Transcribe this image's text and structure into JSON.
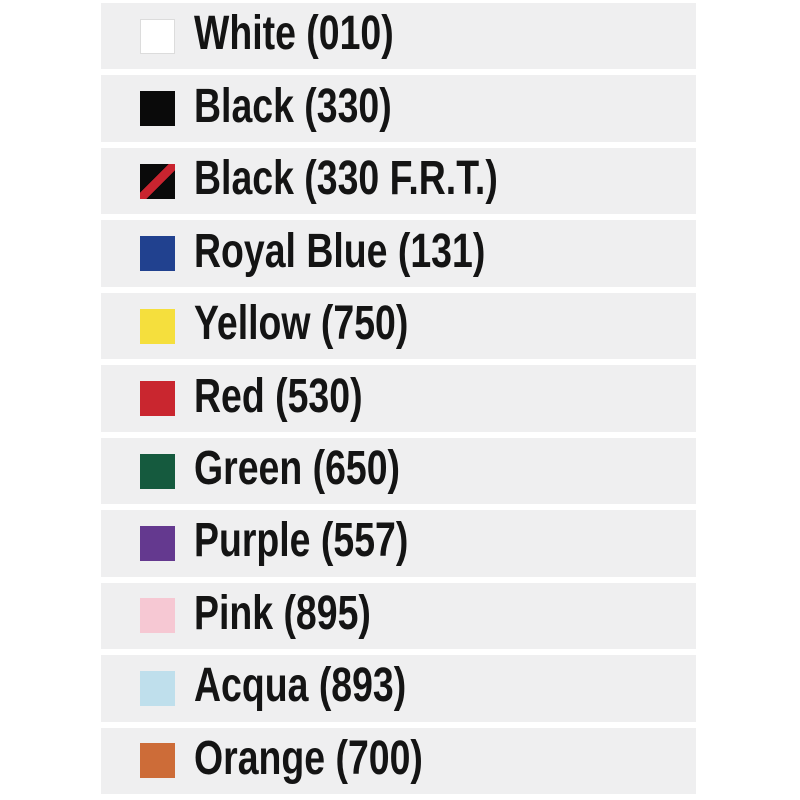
{
  "palette": {
    "page_background": "#ffffff",
    "row_background": "#efeff0",
    "text_color": "#141414",
    "white_swatch_border": "#dcdcdc"
  },
  "color_list": {
    "items": [
      {
        "label": "White (010)",
        "color_name": "White",
        "code": "010",
        "swatch": "#ffffff",
        "bordered": true
      },
      {
        "label": "Black (330)",
        "color_name": "Black",
        "code": "330",
        "swatch": "#0a0a0a"
      },
      {
        "label": "Black (330 F.R.T.)",
        "color_name": "Black",
        "code": "330 F.R.T.",
        "swatch": "#0a0a0a",
        "stripe": "#c9242f"
      },
      {
        "label": "Royal Blue (131)",
        "color_name": "Royal Blue",
        "code": "131",
        "swatch": "#21418f"
      },
      {
        "label": "Yellow (750)",
        "color_name": "Yellow",
        "code": "750",
        "swatch": "#f5df3d"
      },
      {
        "label": "Red (530)",
        "color_name": "Red",
        "code": "530",
        "swatch": "#c9262f"
      },
      {
        "label": "Green (650)",
        "color_name": "Green",
        "code": "650",
        "swatch": "#155a3e"
      },
      {
        "label": "Purple (557)",
        "color_name": "Purple",
        "code": "557",
        "swatch": "#64398f"
      },
      {
        "label": "Pink (895)",
        "color_name": "Pink",
        "code": "895",
        "swatch": "#f6c8d3"
      },
      {
        "label": "Acqua (893)",
        "color_name": "Acqua",
        "code": "893",
        "swatch": "#bfdfec"
      },
      {
        "label": "Orange (700)",
        "color_name": "Orange",
        "code": "700",
        "swatch": "#cd6c38"
      }
    ]
  }
}
